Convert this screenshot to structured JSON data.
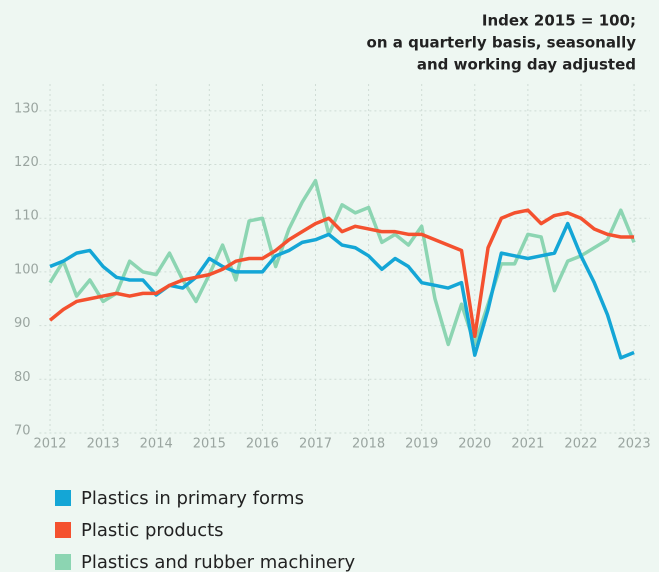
{
  "chart_data": {
    "type": "line",
    "title": [
      "Index 2015 = 100;",
      "on a quarterly basis, seasonally",
      "and working day adjusted"
    ],
    "x": [
      2012,
      2012.25,
      2012.5,
      2012.75,
      2013,
      2013.25,
      2013.5,
      2013.75,
      2014,
      2014.25,
      2014.5,
      2014.75,
      2015,
      2015.25,
      2015.5,
      2015.75,
      2016,
      2016.25,
      2016.5,
      2016.75,
      2017,
      2017.25,
      2017.5,
      2017.75,
      2018,
      2018.25,
      2018.5,
      2018.75,
      2019,
      2019.25,
      2019.5,
      2019.75,
      2020,
      2020.25,
      2020.5,
      2020.75,
      2021,
      2021.25,
      2021.5,
      2021.75,
      2022,
      2022.25,
      2022.5,
      2022.75,
      2023
    ],
    "series": [
      {
        "name": "Plastics in primary forms",
        "color": "#14a6d6",
        "values": [
          101,
          102,
          103.5,
          104,
          101,
          99,
          98.5,
          98.5,
          95.7,
          97.5,
          97,
          99,
          102.5,
          101,
          100,
          100,
          100,
          103,
          104,
          105.5,
          106,
          107,
          105,
          104.5,
          103,
          100.5,
          102.5,
          101,
          98,
          97.5,
          97,
          98,
          84.5,
          93,
          103.5,
          103,
          102.5,
          103,
          103.5,
          109,
          103,
          98,
          92,
          84,
          85
        ]
      },
      {
        "name": "Plastic products",
        "color": "#f4512f",
        "values": [
          91,
          93,
          94.5,
          95,
          95.5,
          96,
          95.5,
          96,
          96,
          97.5,
          98.5,
          99,
          99.5,
          100.5,
          102,
          102.5,
          102.5,
          104,
          106,
          107.5,
          109,
          110,
          107.5,
          108.5,
          108,
          107.5,
          107.5,
          107,
          107,
          106,
          105,
          104,
          88,
          104.5,
          110,
          111,
          111.5,
          109,
          110.5,
          111,
          110,
          108,
          107,
          106.5,
          106.5
        ]
      },
      {
        "name": "Plastics and rubber machinery",
        "color": "#8cd5b2",
        "values": [
          98,
          102,
          95.5,
          98.5,
          94.5,
          96,
          102,
          100,
          99.5,
          103.5,
          98.5,
          94.5,
          99.5,
          105,
          98.5,
          109.5,
          110,
          101,
          108,
          113,
          117,
          107,
          112.5,
          111,
          112,
          105.5,
          107,
          105,
          108.5,
          95,
          86.5,
          94,
          86.5,
          94,
          101.5,
          101.5,
          107,
          106.5,
          96.5,
          102,
          103,
          104.5,
          106,
          111.5,
          105.5
        ]
      }
    ],
    "xlim": [
      2011.8,
      2023.3
    ],
    "xticks": [
      2012,
      2013,
      2014,
      2015,
      2016,
      2017,
      2018,
      2019,
      2020,
      2021,
      2022,
      2023
    ],
    "ylim": [
      70,
      135
    ],
    "yticks": [
      70,
      80,
      90,
      100,
      110,
      120,
      130
    ],
    "grid": true
  }
}
